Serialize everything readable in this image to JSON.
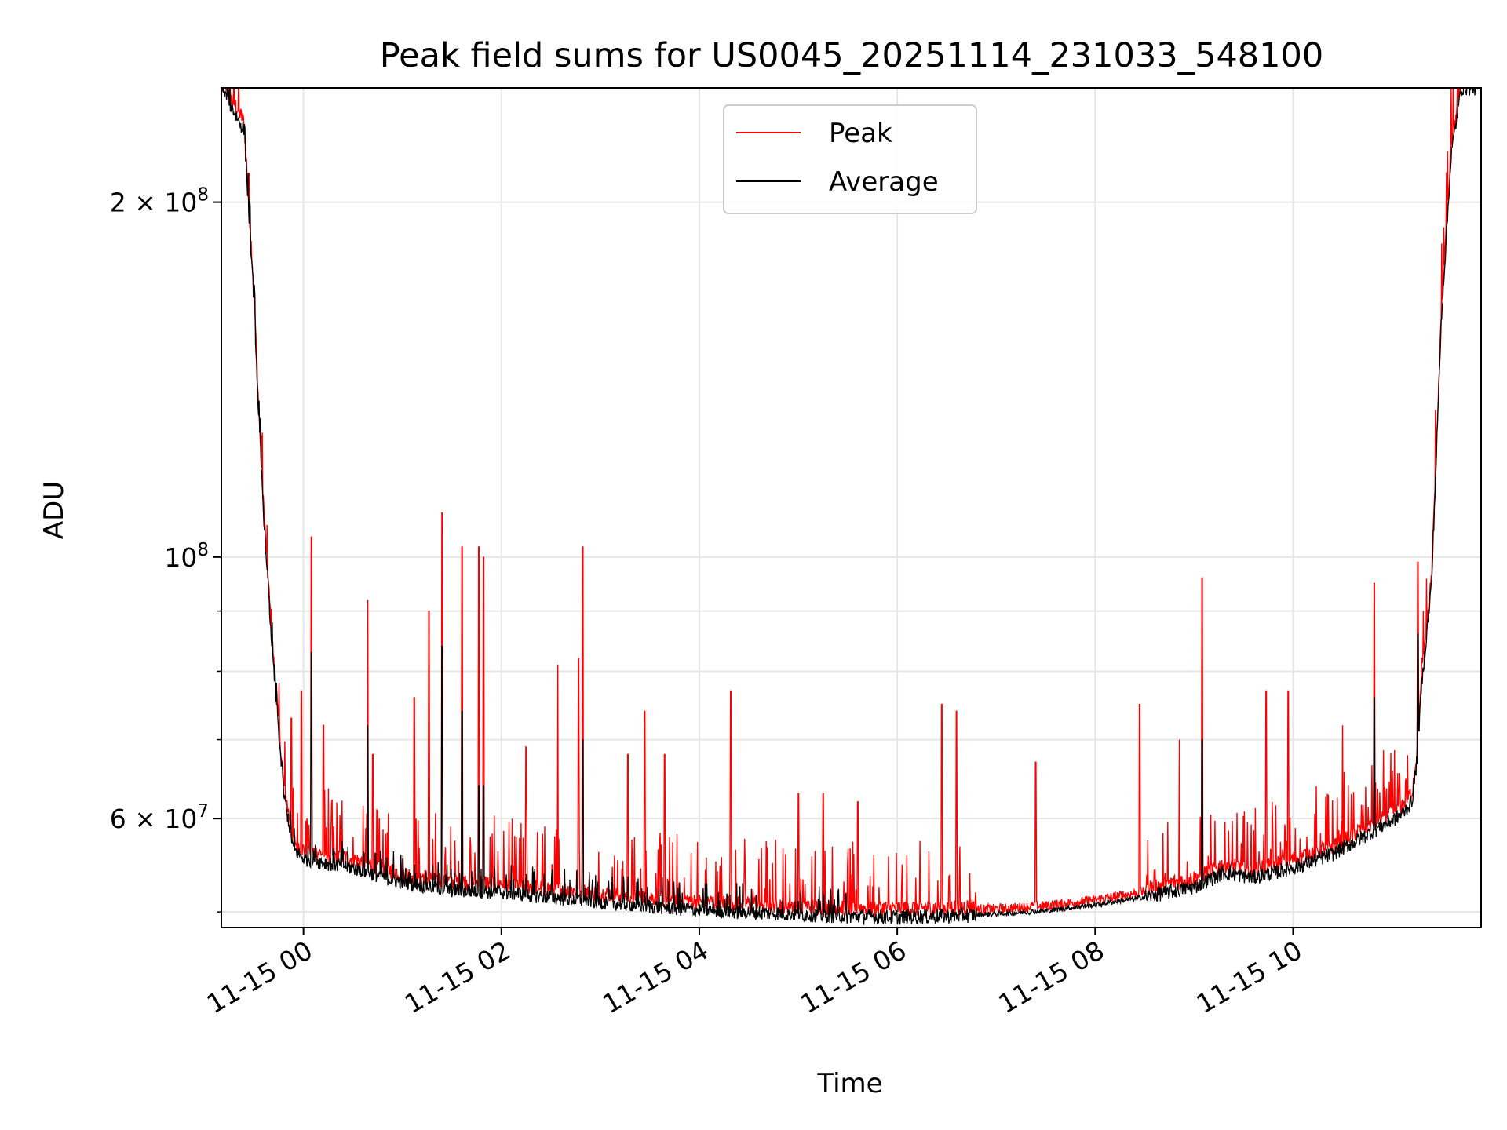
{
  "chart_data": {
    "type": "line",
    "title": "Peak field sums for US0045_20251114_231033_548100",
    "xlabel": "Time",
    "ylabel": "ADU",
    "yscale": "log",
    "ylim": [
      48500000,
      250000000
    ],
    "xlim_hours": [
      -0.83,
      11.9
    ],
    "grid": true,
    "legend": {
      "location": "upper center",
      "entries": [
        "Peak",
        "Average"
      ]
    },
    "x_tick_labels": [
      {
        "hour": 0,
        "label": "11-15 00"
      },
      {
        "hour": 2,
        "label": "11-15 02"
      },
      {
        "hour": 4,
        "label": "11-15 04"
      },
      {
        "hour": 6,
        "label": "11-15 06"
      },
      {
        "hour": 8,
        "label": "11-15 08"
      },
      {
        "hour": 10,
        "label": "11-15 10"
      }
    ],
    "y_major_ticks": [
      {
        "value": 200000000,
        "mantissa": "2",
        "exponent": "8"
      },
      {
        "value": 100000000,
        "mantissa": "",
        "exponent": "8"
      },
      {
        "value": 60000000,
        "mantissa": "6",
        "exponent": "7"
      }
    ],
    "y_minor_ticks": [
      50000000,
      70000000,
      80000000,
      90000000
    ],
    "baseline_points": [
      [
        -0.83,
        250000000
      ],
      [
        -0.6,
        230000000
      ],
      [
        -0.5,
        165000000
      ],
      [
        -0.45,
        130000000
      ],
      [
        -0.38,
        100000000
      ],
      [
        -0.3,
        80000000
      ],
      [
        -0.2,
        63000000
      ],
      [
        -0.1,
        56500000
      ],
      [
        0.0,
        55500000
      ],
      [
        0.5,
        54500000
      ],
      [
        1.0,
        53000000
      ],
      [
        1.5,
        52200000
      ],
      [
        2.0,
        52000000
      ],
      [
        2.5,
        51500000
      ],
      [
        3.0,
        51000000
      ],
      [
        3.5,
        50600000
      ],
      [
        4.0,
        50200000
      ],
      [
        4.5,
        50000000
      ],
      [
        5.0,
        49800000
      ],
      [
        5.5,
        49600000
      ],
      [
        6.0,
        49500000
      ],
      [
        6.5,
        49600000
      ],
      [
        7.0,
        49800000
      ],
      [
        7.5,
        50100000
      ],
      [
        8.0,
        50700000
      ],
      [
        8.5,
        51500000
      ],
      [
        9.0,
        52500000
      ],
      [
        9.3,
        54000000
      ],
      [
        9.6,
        53500000
      ],
      [
        10.0,
        54500000
      ],
      [
        10.4,
        56000000
      ],
      [
        10.8,
        58500000
      ],
      [
        11.1,
        60500000
      ],
      [
        11.2,
        62000000
      ],
      [
        11.25,
        67000000
      ],
      [
        11.3,
        78000000
      ],
      [
        11.4,
        95000000
      ],
      [
        11.5,
        160000000
      ],
      [
        11.6,
        220000000
      ],
      [
        11.7,
        250000000
      ],
      [
        11.9,
        250000000
      ]
    ],
    "series": [
      {
        "name": "Peak",
        "color": "#ff0000",
        "spikes": [
          [
            -0.12,
            73000000
          ],
          [
            -0.02,
            77000000
          ],
          [
            0.08,
            104000000
          ],
          [
            0.2,
            72000000
          ],
          [
            0.65,
            92000000
          ],
          [
            0.7,
            68000000
          ],
          [
            1.12,
            76000000
          ],
          [
            1.27,
            90000000
          ],
          [
            1.4,
            109000000
          ],
          [
            1.6,
            102000000
          ],
          [
            1.77,
            102000000
          ],
          [
            1.82,
            100000000
          ],
          [
            2.25,
            69000000
          ],
          [
            2.57,
            81000000
          ],
          [
            2.78,
            82000000
          ],
          [
            2.82,
            102000000
          ],
          [
            3.28,
            68000000
          ],
          [
            3.45,
            74000000
          ],
          [
            3.65,
            68000000
          ],
          [
            4.32,
            77000000
          ],
          [
            5.0,
            63000000
          ],
          [
            5.25,
            63000000
          ],
          [
            5.6,
            62000000
          ],
          [
            6.45,
            75000000
          ],
          [
            6.6,
            74000000
          ],
          [
            7.4,
            67000000
          ],
          [
            8.45,
            75000000
          ],
          [
            8.85,
            70000000
          ],
          [
            9.08,
            96000000
          ],
          [
            9.73,
            77000000
          ],
          [
            9.95,
            77000000
          ],
          [
            10.5,
            72000000
          ],
          [
            10.82,
            95000000
          ],
          [
            11.26,
            99000000
          ]
        ]
      },
      {
        "name": "Average",
        "color": "#000000",
        "spikes": [
          [
            0.08,
            83000000
          ],
          [
            0.65,
            72000000
          ],
          [
            1.4,
            84000000
          ],
          [
            1.6,
            74000000
          ],
          [
            1.77,
            64000000
          ],
          [
            1.82,
            64000000
          ],
          [
            2.82,
            70000000
          ],
          [
            9.08,
            70000000
          ],
          [
            10.82,
            76000000
          ],
          [
            11.26,
            86000000
          ]
        ]
      }
    ]
  }
}
